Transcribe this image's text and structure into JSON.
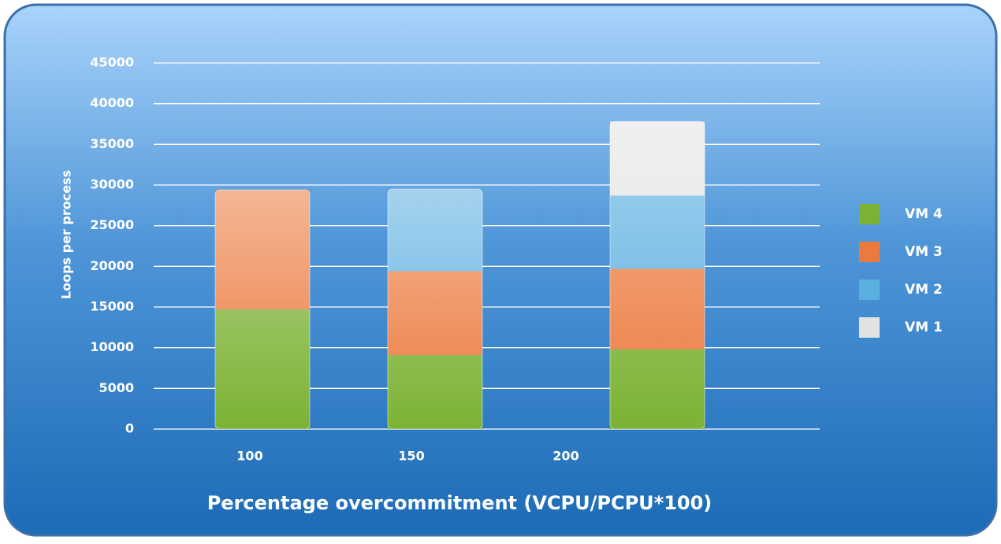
{
  "chart_data": {
    "type": "stacked_bar",
    "x_label": "Percentage overcommitment (VCPU/PCPU*100)",
    "y_label": "Loops per process",
    "categories": [
      "100",
      "150",
      "200"
    ],
    "series": [
      {
        "name": "VM 4",
        "color": "#7cb234",
        "values": [
          14700,
          9100,
          9800
        ]
      },
      {
        "name": "VM 3",
        "color": "#ec7a3e",
        "values": [
          14700,
          10300,
          9900
        ]
      },
      {
        "name": "VM 2",
        "color": "#5aaee0",
        "values": [
          null,
          10100,
          9000
        ]
      },
      {
        "name": "VM 1",
        "color": "#e2e2e2",
        "values": [
          null,
          null,
          9100
        ]
      }
    ],
    "ylim": [
      0,
      45000
    ],
    "yticks": [
      0,
      5000,
      10000,
      15000,
      20000,
      25000,
      30000,
      35000,
      40000,
      45000
    ],
    "grid": true
  }
}
